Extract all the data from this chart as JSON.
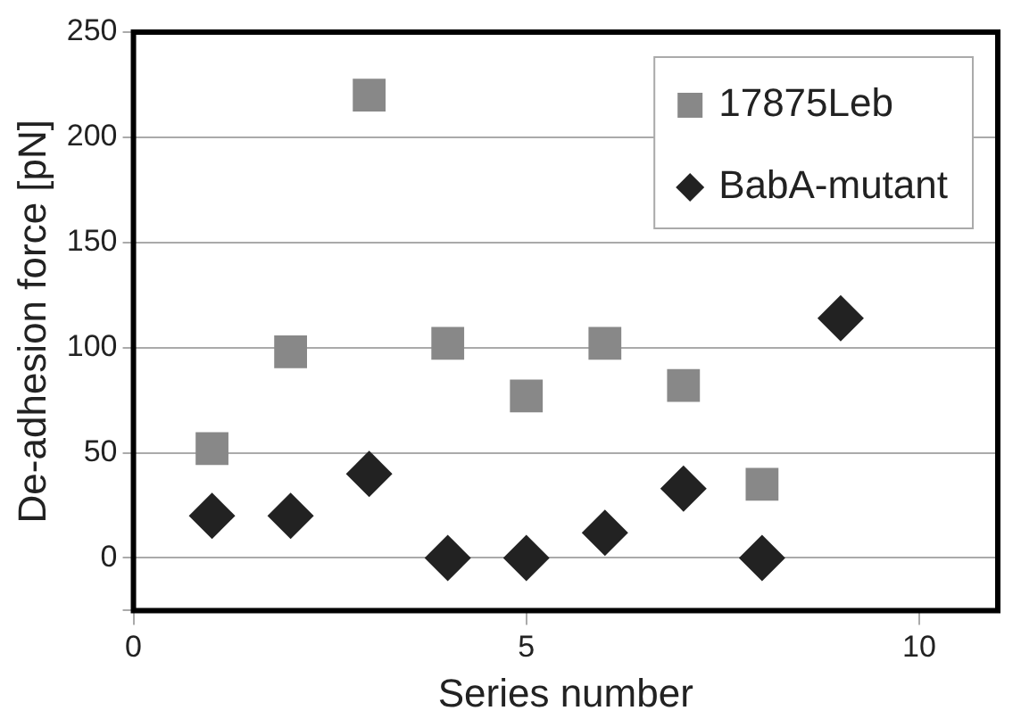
{
  "chart_data": {
    "type": "scatter",
    "xlabel": "Series number",
    "ylabel": "De-adhesion force [pN]",
    "xlim": [
      0,
      11
    ],
    "xticks": [
      0,
      5,
      10
    ],
    "ylim": [
      -25,
      250
    ],
    "yticks": [
      {
        "value": -25,
        "label": null
      },
      0,
      50,
      100,
      150,
      200,
      250
    ],
    "grid": "y",
    "legend": "top right",
    "series": [
      {
        "name": "17875Leb",
        "color": "#888888",
        "marker": "square",
        "x": [
          1,
          2,
          3,
          4,
          5,
          6,
          7,
          8
        ],
        "values": [
          52,
          98,
          220,
          102,
          77,
          102,
          82,
          35
        ]
      },
      {
        "name": "BabA-mutant",
        "color": "#222222",
        "marker": "diamond",
        "x": [
          1,
          2,
          3,
          4,
          5,
          6,
          7,
          8,
          9
        ],
        "values": [
          20,
          20,
          40,
          0,
          0,
          12,
          33,
          0,
          114
        ]
      }
    ]
  }
}
